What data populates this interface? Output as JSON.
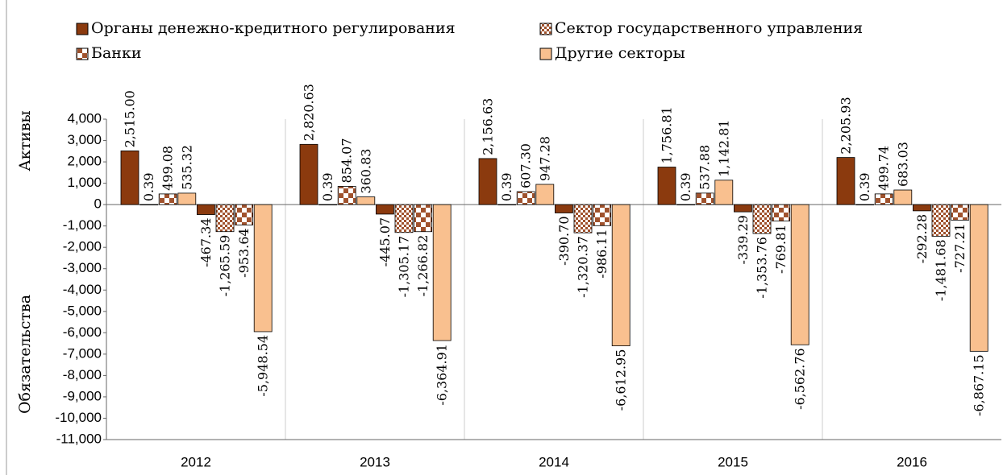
{
  "chart_data": {
    "type": "bar",
    "y_axis_label_top": "Активы",
    "y_axis_label_bottom": "Обязательства",
    "categories": [
      "2012",
      "2013",
      "2014",
      "2015",
      "2016"
    ],
    "series": [
      {
        "name": "Органы денежно-кредитного регулирования",
        "color": "#8b3a0e",
        "pattern": "solid",
        "assets": [
          2515.0,
          2820.63,
          2156.63,
          1756.81,
          2205.93
        ],
        "asset_labels": [
          "2,515.00",
          "2,820.63",
          "2,156.63",
          "1,756.81",
          "2,205.93"
        ],
        "liabilities": [
          -467.34,
          -445.07,
          -390.7,
          -339.29,
          -292.28
        ],
        "liability_labels": [
          "-467.34",
          "-445.07",
          "-390.70",
          "-339.29",
          "-292.28"
        ]
      },
      {
        "name": "Сектор государственного управления",
        "color": "#a0522d",
        "pattern": "fine-checker",
        "assets": [
          0.39,
          0.39,
          0.39,
          0.39,
          0.39
        ],
        "asset_labels": [
          "0.39",
          "0.39",
          "0.39",
          "0.39",
          "0.39"
        ],
        "liabilities": [
          -1265.59,
          -1305.17,
          -1320.37,
          -1353.76,
          -1481.68
        ],
        "liability_labels": [
          "-1,265.59",
          "-1,305.17",
          "-1,320.37",
          "-1,353.76",
          "-1,481.68"
        ]
      },
      {
        "name": "Банки",
        "color": "#a0522d",
        "pattern": "checker",
        "assets": [
          499.08,
          854.07,
          607.3,
          537.88,
          499.74
        ],
        "asset_labels": [
          "499.08",
          "854.07",
          "607.30",
          "537.88",
          "499.74"
        ],
        "liabilities": [
          -953.64,
          -1266.82,
          -986.11,
          -769.81,
          -727.21
        ],
        "liability_labels": [
          "-953.64",
          "-1,266.82",
          "-986.11",
          "-769.81",
          "-727.21"
        ]
      },
      {
        "name": "Другие секторы",
        "color": "#f9c08f",
        "pattern": "solid",
        "assets": [
          535.32,
          360.83,
          947.28,
          1142.81,
          683.03
        ],
        "asset_labels": [
          "535.32",
          "360.83",
          "947.28",
          "1,142.81",
          "683.03"
        ],
        "liabilities": [
          -5948.54,
          -6364.91,
          -6612.95,
          -6562.76,
          -6867.15
        ],
        "liability_labels": [
          "-5,948.54",
          "-6,364.91",
          "-6,612.95",
          "-6,562.76",
          "-6,867.15"
        ]
      }
    ],
    "ylim": [
      -11000,
      4000
    ],
    "yticks": [
      {
        "value": 4000,
        "label": "4,000"
      },
      {
        "value": 3000,
        "label": "3,000"
      },
      {
        "value": 2000,
        "label": "2,000"
      },
      {
        "value": 1000,
        "label": "1,000"
      },
      0,
      {
        "value": -1000,
        "label": "-1,000"
      },
      {
        "value": -2000,
        "label": "-2,000"
      },
      {
        "value": -3000,
        "label": "-3,000"
      },
      {
        "value": -4000,
        "label": "-4,000"
      },
      {
        "value": -5000,
        "label": "-5,000"
      },
      {
        "value": -6000,
        "label": "-6,000"
      },
      {
        "value": -7000,
        "label": "-7,000"
      },
      {
        "value": -8000,
        "label": "-8,000"
      },
      {
        "value": -9000,
        "label": "-9,000"
      },
      {
        "value": -10000,
        "label": "-10,000"
      },
      {
        "value": -11000,
        "label": "-11,000"
      }
    ]
  }
}
